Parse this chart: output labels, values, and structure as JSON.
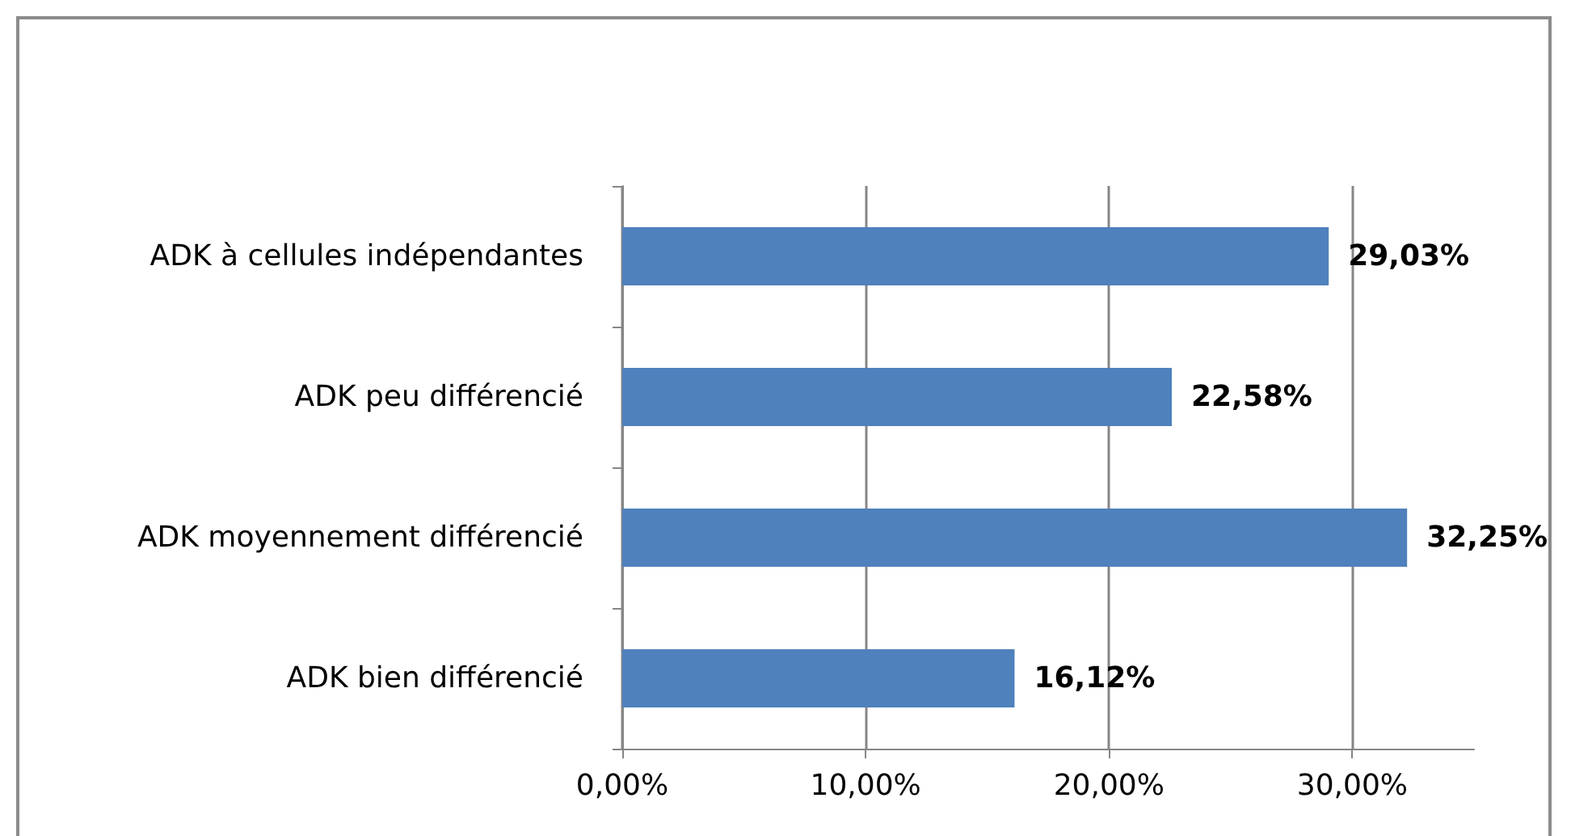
{
  "chart_data": {
    "type": "bar",
    "orientation": "horizontal",
    "categories": [
      "ADK à cellules indépendantes",
      "ADK peu différencié",
      "ADK moyennement différencié",
      "ADK bien différencié"
    ],
    "values": [
      29.03,
      22.58,
      32.25,
      16.12
    ],
    "value_labels": [
      "29,03%",
      "22,58%",
      "32,25%",
      "16,12%"
    ],
    "color": "#4f81bd",
    "xlim": [
      0,
      35
    ],
    "xticks": [
      {
        "value": 0,
        "label": "0,00%"
      },
      {
        "value": 10,
        "label": "10,00%"
      },
      {
        "value": 20,
        "label": "20,00%"
      },
      {
        "value": 30,
        "label": "30,00%"
      }
    ],
    "grid": "x"
  }
}
